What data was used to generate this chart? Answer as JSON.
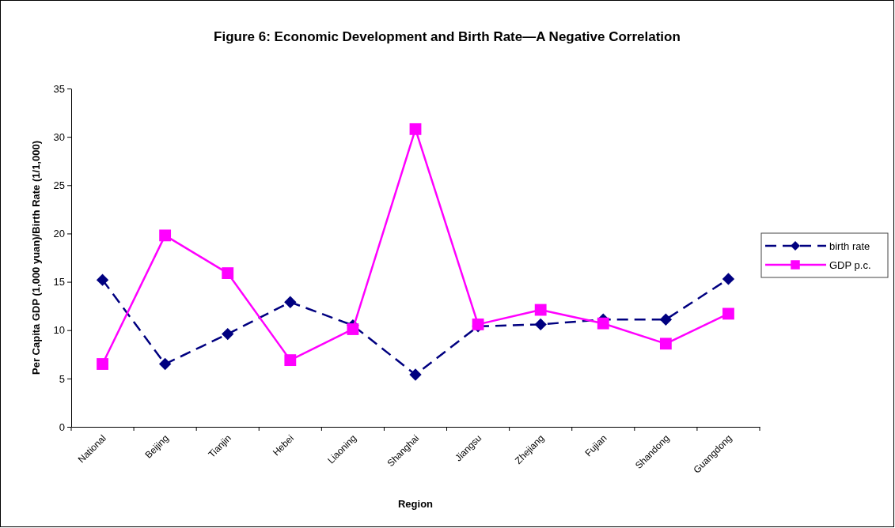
{
  "chart_data": {
    "type": "line",
    "title": "Figure 6: Economic Development and Birth Rate—A Negative Correlation",
    "xlabel": "Region",
    "ylabel": "Per Capita GDP (1,000 yuan)/Birth Rate (1/1,000)",
    "categories": [
      "National",
      "Beijing",
      "Tianjin",
      "Hebei",
      "Liaoning",
      "Shanghai",
      "Jiangsu",
      "Zhejiang",
      "Fujian",
      "Shandong",
      "Guangdong"
    ],
    "series": [
      {
        "name": "birth rate",
        "color": "#000080",
        "marker": "diamond",
        "line_style": "dashed",
        "values": [
          15.2,
          6.5,
          9.6,
          12.9,
          10.5,
          5.4,
          10.4,
          10.6,
          11.1,
          11.1,
          15.3
        ]
      },
      {
        "name": "GDP p.c.",
        "color": "#ff00ff",
        "marker": "square",
        "line_style": "solid",
        "values": [
          6.5,
          19.8,
          15.9,
          6.9,
          10.1,
          30.8,
          10.6,
          12.1,
          10.7,
          8.6,
          11.7
        ]
      }
    ],
    "ylim": [
      0,
      35
    ],
    "yticks": [
      0,
      5,
      10,
      15,
      20,
      25,
      30,
      35
    ],
    "grid": false,
    "legend": "right"
  }
}
